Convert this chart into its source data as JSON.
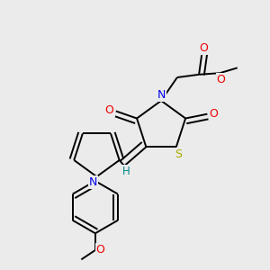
{
  "bg_color": "#ebebeb",
  "bond_color": "#000000",
  "atoms": {
    "S": {
      "color": "#aaaa00"
    },
    "N": {
      "color": "#0000ee"
    },
    "O": {
      "color": "#ee0000"
    },
    "H": {
      "color": "#008888"
    }
  },
  "lw": 1.4,
  "doff": 0.018
}
